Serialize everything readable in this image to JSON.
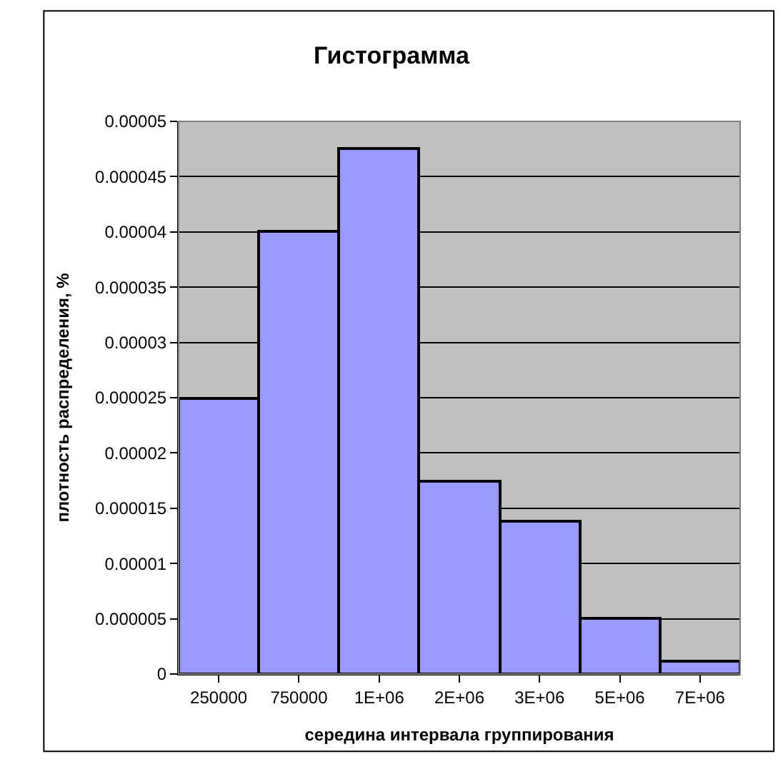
{
  "chart_data": {
    "type": "bar",
    "title": "Гистограмма",
    "xlabel": "середина интервала группирования",
    "ylabel": "плотность распределения, %",
    "categories": [
      "250000",
      "750000",
      "1E+06",
      "2E+06",
      "3E+06",
      "5E+06",
      "7E+06"
    ],
    "values": [
      2.5e-05,
      4e-05,
      4.75e-05,
      1.75e-05,
      1.38e-05,
      5e-06,
      1.2e-06
    ],
    "color": "#9999ff",
    "ylim": [
      0,
      5e-05
    ],
    "yticks": [
      {
        "value": 0,
        "label": "0"
      },
      {
        "value": 5e-06,
        "label": "0.000005"
      },
      {
        "value": 1e-05,
        "label": "0.00001"
      },
      {
        "value": 1.5e-05,
        "label": "0.000015"
      },
      {
        "value": 2e-05,
        "label": "0.00002"
      },
      {
        "value": 2.5e-05,
        "label": "0.000025"
      },
      {
        "value": 3e-05,
        "label": "0.00003"
      },
      {
        "value": 3.5e-05,
        "label": "0.000035"
      },
      {
        "value": 4e-05,
        "label": "0.00004"
      },
      {
        "value": 4.5e-05,
        "label": "0.000045"
      },
      {
        "value": 5e-05,
        "label": "0.00005"
      }
    ],
    "grid": "y",
    "legend": false
  }
}
